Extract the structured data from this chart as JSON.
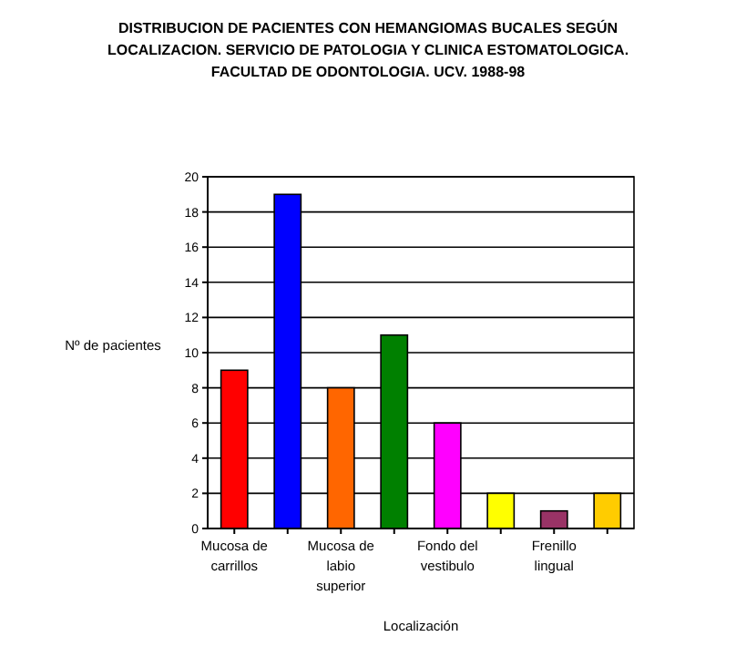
{
  "chart_data": {
    "type": "bar",
    "title": "DISTRIBUCION DE PACIENTES CON HEMANGIOMAS BUCALES SEGÚN LOCALIZACION. SERVICIO DE PATOLOGIA Y CLINICA ESTOMATOLOGICA. FACULTAD DE ODONTOLOGIA. UCV. 1988-98",
    "xlabel": "Localización",
    "ylabel": "Nº de pacientes",
    "categories": [
      "Mucosa de carrillos",
      null,
      "Mucosa de labio superior",
      null,
      "Fondo del vestibulo",
      null,
      "Frenillo lingual",
      null
    ],
    "values": [
      9,
      19,
      8,
      11,
      6,
      2,
      1,
      2
    ],
    "colors": [
      "#ff0000",
      "#0000ff",
      "#ff6600",
      "#008000",
      "#ff00ff",
      "#ffff00",
      "#993366",
      "#ffcc00"
    ],
    "ylim": [
      0,
      20
    ],
    "yticks": [
      0,
      2,
      4,
      6,
      8,
      10,
      12,
      14,
      16,
      18,
      20
    ],
    "grid": "y"
  }
}
